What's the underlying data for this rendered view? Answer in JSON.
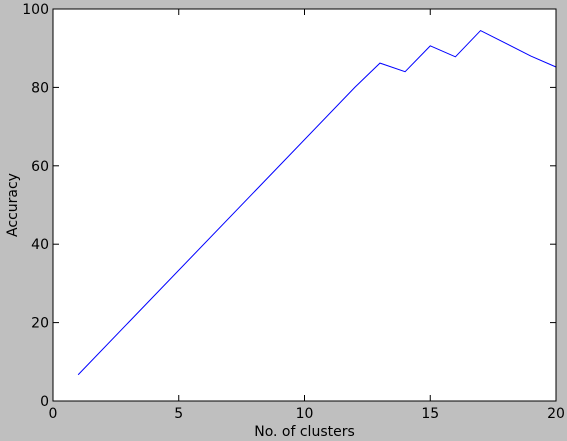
{
  "chart_data": {
    "type": "line",
    "title": "",
    "xlabel": "No. of clusters",
    "ylabel": "Accuracy",
    "xlim": [
      0,
      20
    ],
    "ylim": [
      0,
      100
    ],
    "xticks": [
      0,
      5,
      10,
      15,
      20
    ],
    "yticks": [
      0,
      20,
      40,
      60,
      80,
      100
    ],
    "grid": false,
    "legend": "none",
    "series": [
      {
        "color": "#0000ff",
        "x": [
          1,
          12,
          13,
          14,
          15,
          16,
          17,
          19,
          20
        ],
        "y": [
          6.7,
          80.0,
          86.2,
          84.0,
          90.6,
          87.8,
          94.5,
          88.0,
          85.2
        ]
      }
    ]
  }
}
